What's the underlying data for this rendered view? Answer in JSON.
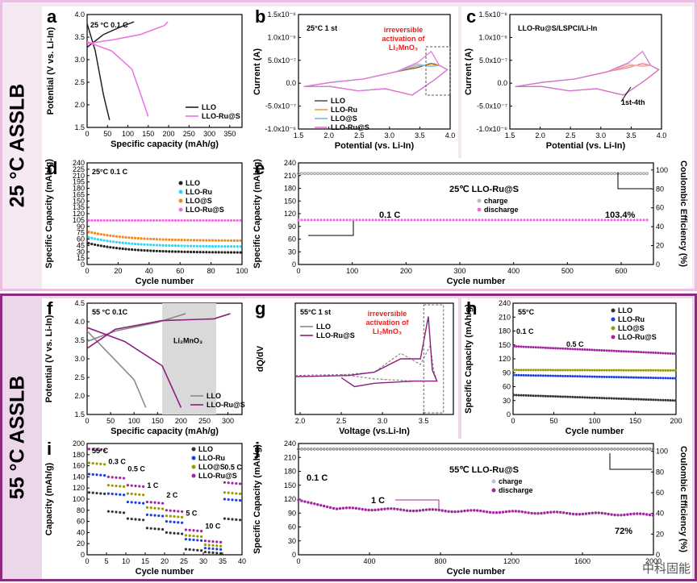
{
  "bands": {
    "top_label": "25 °C ASSLB",
    "bottom_label": "55 °C ASSLB"
  },
  "watermark": "中科固能",
  "panels": [
    {
      "id": "a",
      "letter": "a",
      "note": "25 °C  0.1 C",
      "xlabel": "Specific  capacity (mAh/g)",
      "ylabel": "Potential (V vs. Li-In)",
      "xticks": [
        "0",
        "50",
        "100",
        "150",
        "200",
        "250",
        "300",
        "350"
      ],
      "yticks": [
        "1.5",
        "2.0",
        "2.5",
        "3.0",
        "3.5",
        "4.0"
      ],
      "legend": [
        "LLO",
        "LLO-Ru@S"
      ]
    },
    {
      "id": "b",
      "letter": "b",
      "note": "25°C  1 st",
      "ann": [
        "irreversible",
        "activation of",
        "Li₂MnO₃"
      ],
      "xlabel": "Potential (vs. Li-In)",
      "ylabel": "Current (A)",
      "xticks": [
        "1.5",
        "2.0",
        "2.5",
        "3.0",
        "3.5",
        "4.0"
      ],
      "yticks": [
        "1.5x10⁻⁶",
        "1.0x10⁻⁶",
        "5.0x10⁻⁷",
        "0.0",
        "-5.0x10⁻⁷",
        "-1.0x10⁻⁶"
      ],
      "legend": [
        "LLO",
        "LLO-Ru",
        "LLO@S",
        "LLO-Ru@S"
      ]
    },
    {
      "id": "c",
      "letter": "c",
      "note": "LLO-Ru@S/LSPCl/Li-In",
      "ann": [
        "1st-4th"
      ],
      "xlabel": "Potential (vs. Li-In)",
      "ylabel": "Current (A)",
      "xticks": [
        "1.5",
        "2.0",
        "2.5",
        "3.0",
        "3.5",
        "4.0"
      ],
      "yticks": [
        "1.5x10⁻⁶",
        "1.0x10⁻⁶",
        "5.0x10⁻⁷",
        "0.0",
        "-5.0x10⁻⁷",
        "-1.0x10⁻⁶"
      ]
    },
    {
      "id": "d",
      "letter": "d",
      "note": "25°C  0.1 C",
      "xlabel": "Cycle number",
      "ylabel": "Specific Capacity (mAh/g)",
      "xticks": [
        "0",
        "20",
        "40",
        "60",
        "80",
        "100"
      ],
      "yticks": [
        "0",
        "15",
        "30",
        "45",
        "60",
        "75",
        "90",
        "105",
        "120",
        "135",
        "150",
        "165",
        "180",
        "195",
        "210",
        "225",
        "240"
      ],
      "legend": [
        "LLO",
        "LLO-Ru",
        "LLO@S",
        "LLO-Ru@S"
      ]
    },
    {
      "id": "e",
      "letter": "e",
      "note": "25℃  LLO-Ru@S",
      "ann": [
        "0.1 C",
        "103.4%"
      ],
      "xlabel": "Cycle number",
      "ylabel": "Specific Capacity (mAh/g)",
      "y2label": "Coulombic Efficiency (%)",
      "xticks": [
        "0",
        "100",
        "200",
        "300",
        "400",
        "500",
        "600"
      ],
      "yticks": [
        "0",
        "30",
        "60",
        "90",
        "120",
        "150",
        "180",
        "210",
        "240"
      ],
      "y2ticks": [
        "0",
        "20",
        "40",
        "60",
        "80",
        "100"
      ],
      "legend": [
        "charge",
        "discharge"
      ]
    },
    {
      "id": "f",
      "letter": "f",
      "note": "55 °C  0.1C",
      "ann": [
        "Li₂MnO₃"
      ],
      "xlabel": "Specific  capacity (mAh/g)",
      "ylabel": "Potential (V vs. Li-In)",
      "xticks": [
        "0",
        "50",
        "100",
        "150",
        "200",
        "250",
        "300"
      ],
      "yticks": [
        "1.5",
        "2.0",
        "2.5",
        "3.0",
        "3.5",
        "4.0",
        "4.5"
      ],
      "legend": [
        "LLO",
        "LLO-Ru@S"
      ]
    },
    {
      "id": "g",
      "letter": "g",
      "note": "55°C  1 st",
      "ann": [
        "irreversible",
        "activation of",
        "Li₂MnO₃"
      ],
      "xlabel": "Voltage (vs.Li-In)",
      "ylabel": "dQ/dV",
      "xticks": [
        "2.0",
        "2.5",
        "3.0",
        "3.5",
        "4.0"
      ],
      "legend": [
        "LLO",
        "LLO-Ru@S"
      ]
    },
    {
      "id": "h",
      "letter": "h",
      "note": "55°C",
      "ann": [
        "0.1 C",
        "0.5 C"
      ],
      "xlabel": "Cycle number",
      "ylabel": "Specific Capacity (mAh/g)",
      "xticks": [
        "0",
        "50",
        "100",
        "150",
        "200"
      ],
      "yticks": [
        "0",
        "30",
        "60",
        "90",
        "120",
        "150",
        "180",
        "210",
        "240"
      ],
      "legend": [
        "LLO",
        "LLO-Ru",
        "LLO@S",
        "LLO-Ru@S"
      ]
    },
    {
      "id": "i",
      "letter": "i",
      "note": "55°C",
      "ann": [
        "0.1 C",
        "0.3 C",
        "0.5 C",
        "1 C",
        "2 C",
        "5 C",
        "10 C",
        "0.5 C"
      ],
      "xlabel": "Cycle number",
      "ylabel": "Capacity (mAh/g)",
      "xticks": [
        "0",
        "5",
        "10",
        "15",
        "20",
        "25",
        "30",
        "35",
        "40"
      ],
      "yticks": [
        "0",
        "20",
        "40",
        "60",
        "80",
        "100",
        "120",
        "140",
        "160",
        "180",
        "200"
      ],
      "legend": [
        "LLO",
        "LLO-Ru",
        "LLO@S",
        "LLO-Ru@S"
      ]
    },
    {
      "id": "j",
      "letter": "j",
      "note": "55℃  LLO-Ru@S",
      "ann": [
        "0.1 C",
        "1 C",
        "72%"
      ],
      "xlabel": "Cycle number",
      "ylabel": "Specific Capacity (mAh/g)",
      "y2label": "Coulombic Efficiency (%)",
      "xticks": [
        "0",
        "400",
        "800",
        "1200",
        "1600",
        "2000"
      ],
      "yticks": [
        "0",
        "30",
        "60",
        "90",
        "120",
        "150",
        "180",
        "210",
        "240"
      ],
      "y2ticks": [
        "0",
        "20",
        "40",
        "60",
        "80",
        "100"
      ],
      "legend": [
        "charge",
        "discharge"
      ]
    }
  ],
  "colors": {
    "LLO": "#222222",
    "LLO-Ru": "#33d6f0",
    "LLO@S": "#f28a1e",
    "LLO-Ru@S": "#ee6fe0",
    "f_LLO": "#8a8a8a",
    "f_Ru": "#8c1f80",
    "h_LLO": "#333333",
    "h_Ru": "#1a3fe0",
    "h_S": "#9a9a00",
    "h_RuS": "#a126a0",
    "b_LLO": "#555555",
    "b_Ru": "#f0a030",
    "b_S": "#7ab8f0",
    "b_RuS": "#ee6fe0",
    "red": "#ee1c1c"
  },
  "chart_data": [
    {
      "panel": "a",
      "type": "line",
      "series": [
        {
          "name": "LLO",
          "charge": [
            [
              0,
              3.5
            ],
            [
              40,
              3.85
            ],
            [
              80,
              4.05
            ],
            [
              115,
              4.2
            ]
          ],
          "discharge": [
            [
              0,
              4.15
            ],
            [
              20,
              3.4
            ],
            [
              40,
              2.2
            ],
            [
              55,
              1.5
            ]
          ]
        },
        {
          "name": "LLO-Ru@S",
          "charge": [
            [
              0,
              3.6
            ],
            [
              60,
              3.7
            ],
            [
              130,
              3.85
            ],
            [
              190,
              4.1
            ],
            [
              198,
              4.2
            ]
          ],
          "discharge": [
            [
              0,
              3.65
            ],
            [
              60,
              3.4
            ],
            [
              110,
              2.9
            ],
            [
              150,
              1.6
            ]
          ]
        }
      ],
      "xlim": [
        0,
        380
      ],
      "ylim": [
        1.3,
        4.4
      ]
    },
    {
      "panel": "d",
      "type": "scatter",
      "series": [
        {
          "name": "LLO",
          "values_start": 51,
          "values_end": 28
        },
        {
          "name": "LLO-Ru",
          "values_start": 65,
          "values_end": 42
        },
        {
          "name": "LLO@S",
          "values_start": 78,
          "values_end": 56
        },
        {
          "name": "LLO-Ru@S",
          "values_start": 104,
          "values_end": 104
        }
      ],
      "xlim": [
        0,
        100
      ],
      "ylim": [
        0,
        240
      ]
    },
    {
      "panel": "e",
      "type": "scatter",
      "series": [
        {
          "name": "discharge",
          "x": [
            0,
            650
          ],
          "y": [
            105,
            105
          ]
        },
        {
          "name": "charge",
          "x": [
            0,
            650
          ],
          "y": [
            97,
            97
          ]
        }
      ],
      "xlim": [
        0,
        660
      ],
      "ylim": [
        0,
        240
      ]
    },
    {
      "panel": "h",
      "type": "scatter",
      "series": [
        {
          "name": "LLO",
          "values_start": 42,
          "values_end": 30
        },
        {
          "name": "LLO-Ru",
          "values_start": 85,
          "values_end": 78
        },
        {
          "name": "LLO@S",
          "values_start": 96,
          "values_end": 95
        },
        {
          "name": "LLO-Ru@S",
          "values_start": 147,
          "values_end": 131
        }
      ],
      "xlim": [
        0,
        200
      ],
      "ylim": [
        0,
        240
      ]
    },
    {
      "panel": "i",
      "type": "scatter",
      "categories": [
        "0.1 C",
        "0.3 C",
        "0.5 C",
        "1 C",
        "2 C",
        "5 C",
        "10 C",
        "0.5 C"
      ],
      "series": [
        {
          "name": "LLO",
          "values": [
            112,
            78,
            65,
            48,
            40,
            10,
            5,
            65
          ]
        },
        {
          "name": "LLO-Ru",
          "values": [
            145,
            110,
            95,
            72,
            60,
            28,
            12,
            100
          ]
        },
        {
          "name": "LLO@S",
          "values": [
            165,
            125,
            110,
            85,
            70,
            35,
            18,
            112
          ]
        },
        {
          "name": "LLO-Ru@S",
          "values": [
            190,
            140,
            125,
            95,
            80,
            45,
            25,
            130
          ]
        }
      ],
      "xlim": [
        0,
        40
      ],
      "ylim": [
        0,
        200
      ]
    },
    {
      "panel": "j",
      "type": "scatter",
      "series": [
        {
          "name": "discharge",
          "points": [
            [
              0,
              118
            ],
            [
              200,
              100
            ],
            [
              800,
              92
            ],
            [
              1600,
              88
            ],
            [
              2000,
              86
            ]
          ]
        },
        {
          "name": "charge",
          "y_eff": 100
        }
      ],
      "xlim": [
        0,
        2000
      ],
      "ylim": [
        0,
        240
      ]
    }
  ]
}
